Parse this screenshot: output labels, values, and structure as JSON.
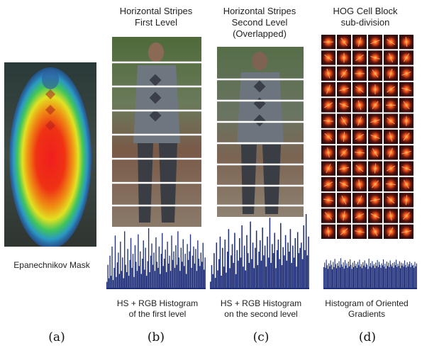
{
  "panels": [
    {
      "id": "a",
      "title": "",
      "caption": "Epanechnikov Mask",
      "sublabel": "(a)"
    },
    {
      "id": "b",
      "title": "Horizontal Stripes\nFirst Level",
      "caption": "HS + RGB Histogram\nof the first level",
      "sublabel": "(b)"
    },
    {
      "id": "c",
      "title": "Horizontal Stripes\nSecond Level\n(Overlapped)",
      "caption": "HS + RGB Histogram\non the second level",
      "sublabel": "(c)"
    },
    {
      "id": "d",
      "title": "HOG Cell Block\nsub-division",
      "caption": "Histogram of Oriented\nGradients",
      "sublabel": "(d)"
    }
  ],
  "colors": {
    "histogram": "#1f2f7a",
    "stripe": "#ffffff",
    "hog_bg": "#3a0e0e",
    "hog_glow": "#ff5a1a"
  },
  "chart_data": [
    {
      "type": "bar",
      "series": [
        {
          "values": [
            12,
            40,
            18,
            55,
            22,
            70,
            15,
            35,
            88,
            20,
            44,
            60,
            25,
            78,
            30,
            52,
            18,
            95,
            40,
            28,
            66,
            22,
            48,
            84,
            35,
            58,
            20,
            72,
            45,
            30,
            90,
            38,
            62,
            25,
            50,
            80,
            32,
            68,
            22,
            46,
            100,
            28,
            55,
            75,
            40,
            60,
            30,
            85,
            45,
            35,
            70,
            25,
            58,
            92,
            38,
            50,
            65,
            28,
            78,
            42,
            55,
            30,
            88,
            48,
            62,
            35,
            72,
            40,
            95,
            52,
            30,
            68,
            45,
            82,
            38,
            58,
            25,
            74,
            48,
            62,
            90,
            35,
            55,
            70,
            42,
            66,
            30,
            80,
            50,
            38,
            60,
            45,
            76,
            32,
            52
          ]
        }
      ],
      "ylim": [
        0,
        100
      ]
    },
    {
      "type": "bar",
      "series": [
        {
          "values": [
            10,
            32,
            20,
            48,
            15,
            62,
            25,
            40,
            70,
            18,
            55,
            30,
            66,
            22,
            50,
            80,
            28,
            45,
            60,
            35,
            75,
            20,
            52,
            38,
            68,
            42,
            85,
            30,
            58,
            25,
            72,
            48,
            35,
            90,
            40,
            62,
            28,
            55,
            78,
            32,
            50,
            65,
            38,
            82,
            45,
            58,
            30,
            70,
            42,
            95,
            35,
            60,
            48,
            75,
            28,
            52,
            66,
            40,
            88,
            32,
            56,
            45,
            72,
            38,
            62,
            50,
            80,
            35,
            58,
            42,
            68,
            30,
            76,
            48,
            55,
            62,
            40,
            85,
            52,
            100,
            45,
            70
          ]
        }
      ],
      "ylim": [
        0,
        100
      ]
    },
    {
      "type": "bar",
      "series": [
        {
          "values": [
            60,
            72,
            58,
            80,
            65,
            55,
            70,
            62,
            78,
            66,
            54,
            74,
            60,
            82,
            68,
            57,
            71,
            63,
            76,
            59,
            84,
            67,
            61,
            73,
            56,
            79,
            64,
            70,
            58,
            75,
            62,
            81,
            66,
            55,
            72,
            60,
            77,
            63,
            69,
            58,
            74,
            65,
            80,
            61,
            68,
            57,
            73,
            64,
            78,
            60,
            70,
            66,
            55,
            83,
            62,
            71,
            59,
            76,
            64,
            68,
            57,
            72,
            63,
            79,
            60,
            74,
            66,
            58,
            70,
            65,
            81,
            61,
            69,
            56,
            75,
            63,
            72,
            60,
            78,
            67,
            62,
            71,
            58,
            74,
            65,
            80,
            60,
            69,
            63,
            76,
            57,
            72,
            64,
            70,
            61,
            78,
            66,
            59,
            73,
            62,
            68,
            75,
            60,
            71,
            64,
            66,
            58,
            74,
            62,
            70
          ]
        }
      ],
      "ylim": [
        0,
        100
      ]
    }
  ]
}
